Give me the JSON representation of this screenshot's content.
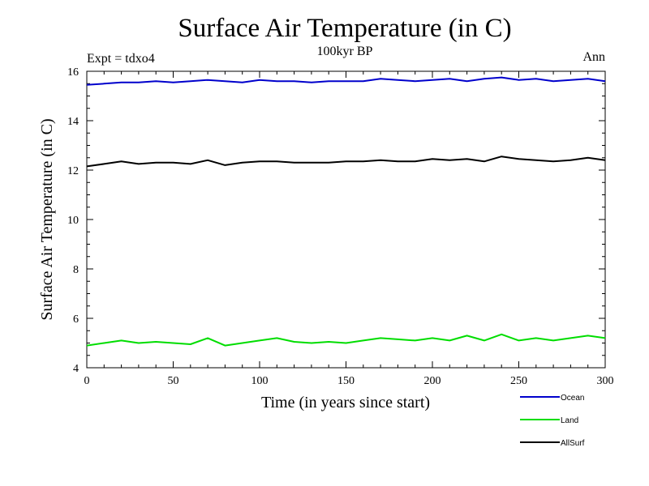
{
  "chart_data": {
    "type": "line",
    "title": "Surface Air Temperature (in C)",
    "subtitle": "100kyr BP",
    "experiment_label": "Expt = tdxo4",
    "season_label": "Ann",
    "xlabel": "Time (in years since start)",
    "ylabel": "Surface Air Temperature (in C)",
    "xlim": [
      0,
      300
    ],
    "ylim": [
      4,
      16
    ],
    "xticks": [
      0,
      50,
      100,
      150,
      200,
      250,
      300
    ],
    "yticks": [
      4,
      6,
      8,
      10,
      12,
      14,
      16
    ],
    "xtick_labels": [
      "0",
      "50",
      "100",
      "150",
      "200",
      "250",
      "300"
    ],
    "ytick_labels": [
      "4",
      "6",
      "8",
      "10",
      "12",
      "14",
      "16"
    ],
    "grid": false,
    "legend_position": "bottom-right",
    "series": [
      {
        "name": "Ocean",
        "color": "#0000cc",
        "x": [
          0,
          10,
          20,
          30,
          40,
          50,
          60,
          70,
          80,
          90,
          100,
          110,
          120,
          130,
          140,
          150,
          160,
          170,
          180,
          190,
          200,
          210,
          220,
          230,
          240,
          250,
          260,
          270,
          280,
          290,
          300
        ],
        "values": [
          15.45,
          15.5,
          15.55,
          15.55,
          15.6,
          15.55,
          15.6,
          15.65,
          15.6,
          15.55,
          15.65,
          15.6,
          15.6,
          15.55,
          15.6,
          15.6,
          15.6,
          15.7,
          15.65,
          15.6,
          15.65,
          15.7,
          15.6,
          15.7,
          15.75,
          15.65,
          15.7,
          15.6,
          15.65,
          15.7,
          15.6
        ]
      },
      {
        "name": "Land",
        "color": "#00dd00",
        "x": [
          0,
          10,
          20,
          30,
          40,
          50,
          60,
          70,
          80,
          90,
          100,
          110,
          120,
          130,
          140,
          150,
          160,
          170,
          180,
          190,
          200,
          210,
          220,
          230,
          240,
          250,
          260,
          270,
          280,
          290,
          300
        ],
        "values": [
          4.9,
          5.0,
          5.1,
          5.0,
          5.05,
          5.0,
          4.95,
          5.2,
          4.9,
          5.0,
          5.1,
          5.2,
          5.05,
          5.0,
          5.05,
          5.0,
          5.1,
          5.2,
          5.15,
          5.1,
          5.2,
          5.1,
          5.3,
          5.1,
          5.35,
          5.1,
          5.2,
          5.1,
          5.2,
          5.3,
          5.2
        ]
      },
      {
        "name": "AllSurf",
        "color": "#000000",
        "x": [
          0,
          10,
          20,
          30,
          40,
          50,
          60,
          70,
          80,
          90,
          100,
          110,
          120,
          130,
          140,
          150,
          160,
          170,
          180,
          190,
          200,
          210,
          220,
          230,
          240,
          250,
          260,
          270,
          280,
          290,
          300
        ],
        "values": [
          12.15,
          12.25,
          12.35,
          12.25,
          12.3,
          12.3,
          12.25,
          12.4,
          12.2,
          12.3,
          12.35,
          12.35,
          12.3,
          12.3,
          12.3,
          12.35,
          12.35,
          12.4,
          12.35,
          12.35,
          12.45,
          12.4,
          12.45,
          12.35,
          12.55,
          12.45,
          12.4,
          12.35,
          12.4,
          12.5,
          12.4
        ]
      }
    ]
  }
}
